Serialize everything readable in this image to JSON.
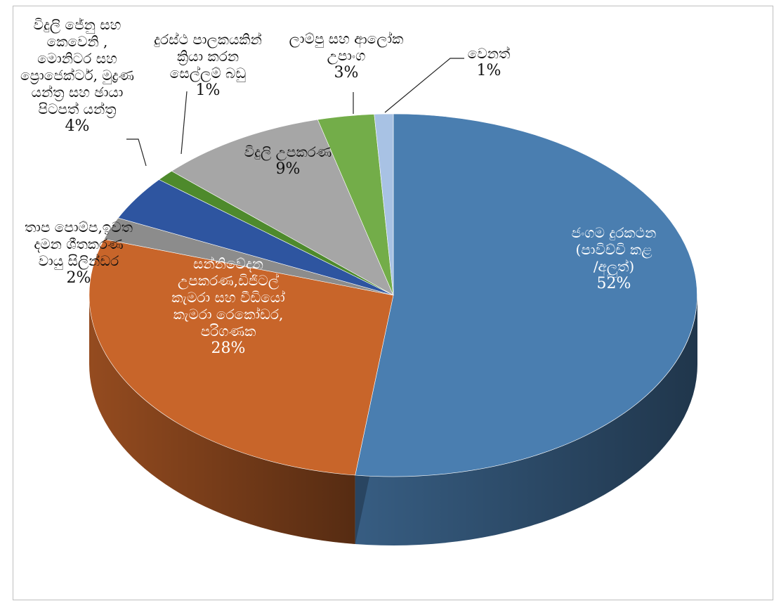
{
  "chart_data": {
    "type": "pie",
    "title": "",
    "style": "3d-exploded-pie",
    "slices": [
      {
        "label_lines": [
          "ජංගම දුරකථන",
          "(පාවිච්චි කළ",
          "/අලුත්)"
        ],
        "percent_label": "52%",
        "value": 52,
        "color": "#4a7eb0",
        "label_placement": "inside"
      },
      {
        "label_lines": [
          "සන්නිවේදන",
          "උපකරණ,ඩිජිටල්",
          "කැමරා සහ වීඩියෝ",
          "කැමරා රෙකෝඩර,",
          "පරිගණක"
        ],
        "percent_label": "28%",
        "value": 28,
        "color": "#c8652a",
        "label_placement": "inside"
      },
      {
        "label_lines": [
          "තාප පොම්ප,ඉවත",
          "දමන ශීතකරණ",
          "වායු සිලින්ඩර"
        ],
        "percent_label": "2%",
        "value": 2,
        "color": "#8c8c8c",
        "label_placement": "outside"
      },
      {
        "label_lines": [
          "විදුලි ජේනු සහ",
          "කෙවෙනි ,",
          "මොනිටර සහ",
          "ප්‍රොජෙක්ටර්, මුද්‍රණ",
          "යන්ත්‍ර සහ ඡායා",
          "පිටපත් යන්ත්‍ර"
        ],
        "percent_label": "4%",
        "value": 4,
        "color": "#2e55a0",
        "label_placement": "outside"
      },
      {
        "label_lines": [
          "දුරස්ථ පාලකයකින්",
          "ක්‍රියා කරන",
          "සෙල්ලම් බඩු"
        ],
        "percent_label": "1%",
        "value": 1,
        "color": "#4e8a2c",
        "label_placement": "outside"
      },
      {
        "label_lines": [
          "විදුලි උපකරණ"
        ],
        "percent_label": "9%",
        "value": 9,
        "color": "#a6a6a6",
        "label_placement": "inside"
      },
      {
        "label_lines": [
          "ලාම්පු සහ ආලෝක",
          "උපාංග"
        ],
        "percent_label": "3%",
        "value": 3,
        "color": "#73ad49",
        "label_placement": "outside"
      },
      {
        "label_lines": [
          "වෙනත්"
        ],
        "percent_label": "1%",
        "value": 1,
        "color": "#a8c2e4",
        "label_placement": "outside"
      }
    ]
  }
}
